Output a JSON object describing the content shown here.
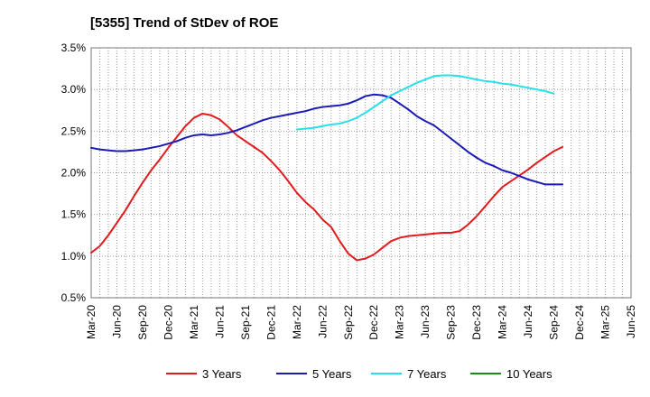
{
  "chart_data": {
    "type": "line",
    "title": "[5355]  Trend of StDev of ROE",
    "xlabel": "",
    "ylabel": "",
    "ylim": [
      0.5,
      3.5
    ],
    "yticks": [
      "0.5%",
      "1.0%",
      "1.5%",
      "2.0%",
      "2.5%",
      "3.0%",
      "3.5%"
    ],
    "yticks_values": [
      0.5,
      1.0,
      1.5,
      2.0,
      2.5,
      3.0,
      3.5
    ],
    "xticks": [
      "Mar-20",
      "Jun-20",
      "Sep-20",
      "Dec-20",
      "Mar-21",
      "Jun-21",
      "Sep-21",
      "Dec-21",
      "Mar-22",
      "Jun-22",
      "Sep-22",
      "Dec-22",
      "Mar-23",
      "Jun-23",
      "Sep-23",
      "Dec-23",
      "Mar-24",
      "Jun-24",
      "Sep-24",
      "Dec-24",
      "Mar-25",
      "Jun-25"
    ],
    "grid": true,
    "legend_position": "bottom",
    "series": [
      {
        "name": "3 Years",
        "color": "#e31a1c",
        "points": [
          [
            0,
            1.04
          ],
          [
            1,
            1.12
          ],
          [
            2,
            1.25
          ],
          [
            3,
            1.4
          ],
          [
            4,
            1.55
          ],
          [
            5,
            1.72
          ],
          [
            6,
            1.88
          ],
          [
            7,
            2.03
          ],
          [
            8,
            2.16
          ],
          [
            9,
            2.3
          ],
          [
            10,
            2.43
          ],
          [
            11,
            2.56
          ],
          [
            12,
            2.66
          ],
          [
            13,
            2.71
          ],
          [
            14,
            2.69
          ],
          [
            15,
            2.64
          ],
          [
            16,
            2.55
          ],
          [
            17,
            2.45
          ],
          [
            18,
            2.38
          ],
          [
            19,
            2.31
          ],
          [
            20,
            2.24
          ],
          [
            21,
            2.14
          ],
          [
            22,
            2.03
          ],
          [
            23,
            1.9
          ],
          [
            24,
            1.76
          ],
          [
            25,
            1.65
          ],
          [
            26,
            1.56
          ],
          [
            27,
            1.44
          ],
          [
            28,
            1.35
          ],
          [
            29,
            1.18
          ],
          [
            30,
            1.03
          ],
          [
            31,
            0.95
          ],
          [
            32,
            0.97
          ],
          [
            33,
            1.02
          ],
          [
            34,
            1.1
          ],
          [
            35,
            1.18
          ],
          [
            36,
            1.22
          ],
          [
            37,
            1.24
          ],
          [
            38,
            1.25
          ],
          [
            39,
            1.26
          ],
          [
            40,
            1.27
          ],
          [
            41,
            1.28
          ],
          [
            42,
            1.28
          ],
          [
            43,
            1.3
          ],
          [
            44,
            1.38
          ],
          [
            45,
            1.48
          ],
          [
            46,
            1.6
          ],
          [
            47,
            1.72
          ],
          [
            48,
            1.83
          ],
          [
            49,
            1.9
          ],
          [
            50,
            1.97
          ],
          [
            51,
            2.04
          ],
          [
            52,
            2.12
          ],
          [
            53,
            2.19
          ],
          [
            54,
            2.26
          ],
          [
            55,
            2.31
          ]
        ]
      },
      {
        "name": "5 Years",
        "color": "#1a1ab8",
        "points": [
          [
            0,
            2.3
          ],
          [
            1,
            2.28
          ],
          [
            2,
            2.27
          ],
          [
            3,
            2.26
          ],
          [
            4,
            2.26
          ],
          [
            5,
            2.27
          ],
          [
            6,
            2.28
          ],
          [
            7,
            2.3
          ],
          [
            8,
            2.32
          ],
          [
            9,
            2.35
          ],
          [
            10,
            2.38
          ],
          [
            11,
            2.42
          ],
          [
            12,
            2.45
          ],
          [
            13,
            2.46
          ],
          [
            14,
            2.45
          ],
          [
            15,
            2.46
          ],
          [
            16,
            2.48
          ],
          [
            17,
            2.51
          ],
          [
            18,
            2.55
          ],
          [
            19,
            2.59
          ],
          [
            20,
            2.63
          ],
          [
            21,
            2.66
          ],
          [
            22,
            2.68
          ],
          [
            23,
            2.7
          ],
          [
            24,
            2.72
          ],
          [
            25,
            2.74
          ],
          [
            26,
            2.77
          ],
          [
            27,
            2.79
          ],
          [
            28,
            2.8
          ],
          [
            29,
            2.81
          ],
          [
            30,
            2.83
          ],
          [
            31,
            2.87
          ],
          [
            32,
            2.92
          ],
          [
            33,
            2.94
          ],
          [
            34,
            2.93
          ],
          [
            35,
            2.9
          ],
          [
            36,
            2.83
          ],
          [
            37,
            2.76
          ],
          [
            38,
            2.68
          ],
          [
            39,
            2.62
          ],
          [
            40,
            2.57
          ],
          [
            41,
            2.49
          ],
          [
            42,
            2.41
          ],
          [
            43,
            2.33
          ],
          [
            44,
            2.25
          ],
          [
            45,
            2.18
          ],
          [
            46,
            2.12
          ],
          [
            47,
            2.08
          ],
          [
            48,
            2.03
          ],
          [
            49,
            2.0
          ],
          [
            50,
            1.96
          ],
          [
            51,
            1.92
          ],
          [
            52,
            1.89
          ],
          [
            53,
            1.86
          ],
          [
            54,
            1.86
          ],
          [
            55,
            1.86
          ]
        ]
      },
      {
        "name": "7 Years",
        "color": "#26e0e8",
        "points": [
          [
            24,
            2.52
          ],
          [
            25,
            2.53
          ],
          [
            26,
            2.54
          ],
          [
            27,
            2.56
          ],
          [
            28,
            2.58
          ],
          [
            29,
            2.59
          ],
          [
            30,
            2.62
          ],
          [
            31,
            2.66
          ],
          [
            32,
            2.72
          ],
          [
            33,
            2.79
          ],
          [
            34,
            2.86
          ],
          [
            35,
            2.93
          ],
          [
            36,
            2.98
          ],
          [
            37,
            3.03
          ],
          [
            38,
            3.08
          ],
          [
            39,
            3.12
          ],
          [
            40,
            3.16
          ],
          [
            41,
            3.17
          ],
          [
            42,
            3.17
          ],
          [
            43,
            3.16
          ],
          [
            44,
            3.14
          ],
          [
            45,
            3.12
          ],
          [
            46,
            3.1
          ],
          [
            47,
            3.09
          ],
          [
            48,
            3.07
          ],
          [
            49,
            3.06
          ],
          [
            50,
            3.04
          ],
          [
            51,
            3.02
          ],
          [
            52,
            3.0
          ],
          [
            53,
            2.98
          ],
          [
            54,
            2.95
          ]
        ]
      },
      {
        "name": "10 Years",
        "color": "#1a8a1a",
        "points": []
      }
    ]
  }
}
